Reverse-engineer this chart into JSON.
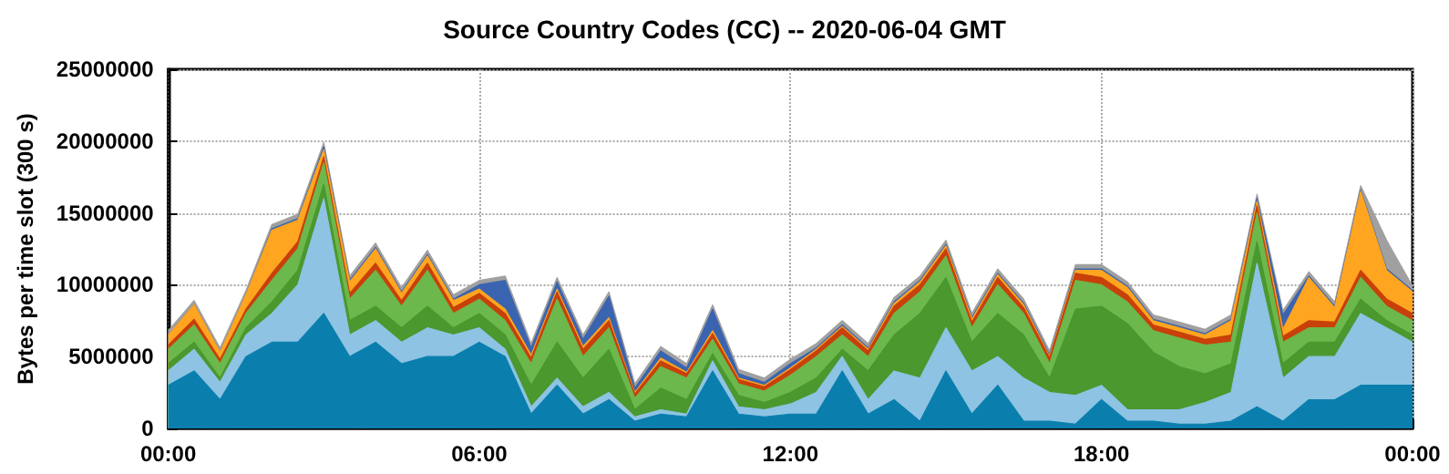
{
  "chart_data": {
    "type": "area",
    "title": "Source Country Codes (CC) -- 2020-06-04 GMT",
    "ylabel": "Bytes per time slot (300 s)",
    "stacked": true,
    "grid": true,
    "marker": "none",
    "x": [
      0,
      0.5,
      1,
      1.5,
      2,
      2.5,
      3,
      3.5,
      4,
      4.5,
      5,
      5.5,
      6,
      6.5,
      7,
      7.5,
      8,
      8.5,
      9,
      9.5,
      10,
      10.5,
      11,
      11.5,
      12,
      12.5,
      13,
      13.5,
      14,
      14.5,
      15,
      15.5,
      16,
      16.5,
      17,
      17.5,
      18,
      18.5,
      19,
      19.5,
      20,
      20.5,
      21,
      21.5,
      22,
      22.5,
      23,
      23.5,
      24
    ],
    "xlim": [
      0,
      24
    ],
    "xticks": [
      {
        "value": 0,
        "label": "00:00"
      },
      {
        "value": 6,
        "label": "06:00"
      },
      {
        "value": 12,
        "label": "12:00"
      },
      {
        "value": 18,
        "label": "18:00"
      },
      {
        "value": 24,
        "label": "00:00"
      }
    ],
    "ylim": [
      0,
      25000000
    ],
    "yticks": [
      0,
      5000000,
      10000000,
      15000000,
      20000000,
      25000000
    ],
    "series": [
      {
        "color": "#0a7fae",
        "values": [
          3000000,
          4000000,
          2000000,
          5000000,
          6000000,
          6000000,
          8000000,
          5000000,
          6000000,
          4500000,
          5000000,
          5000000,
          6000000,
          5000000,
          1000000,
          3000000,
          1000000,
          2000000,
          500000,
          1000000,
          800000,
          4000000,
          1000000,
          800000,
          1000000,
          1000000,
          4000000,
          1000000,
          2000000,
          500000,
          4000000,
          1000000,
          3000000,
          500000,
          500000,
          300000,
          2000000,
          500000,
          500000,
          300000,
          300000,
          500000,
          1500000,
          500000,
          2000000,
          2000000,
          3000000,
          3000000,
          3000000
        ]
      },
      {
        "color": "#8ec3e3",
        "values": [
          1000000,
          1500000,
          1200000,
          1500000,
          2000000,
          4000000,
          8000000,
          1500000,
          1500000,
          1500000,
          2000000,
          1500000,
          1000000,
          500000,
          500000,
          500000,
          500000,
          500000,
          300000,
          300000,
          200000,
          700000,
          500000,
          500000,
          700000,
          1500000,
          1000000,
          1000000,
          2000000,
          3000000,
          3000000,
          3000000,
          2000000,
          3000000,
          2000000,
          2000000,
          1000000,
          800000,
          800000,
          1000000,
          1500000,
          2000000,
          10000000,
          3000000,
          3000000,
          3000000,
          5000000,
          4000000,
          3000000
        ]
      },
      {
        "color": "#4a982e",
        "values": [
          500000,
          500000,
          300000,
          500000,
          800000,
          1000000,
          1000000,
          1000000,
          1000000,
          1000000,
          1500000,
          500000,
          1000000,
          1000000,
          1500000,
          2500000,
          2000000,
          3000000,
          500000,
          1500000,
          1000000,
          500000,
          800000,
          500000,
          800000,
          1000000,
          500000,
          2000000,
          2500000,
          4500000,
          3500000,
          2000000,
          3000000,
          3000000,
          1000000,
          6000000,
          5500000,
          6000000,
          4000000,
          3000000,
          2000000,
          2000000,
          1500000,
          1000000,
          1000000,
          1000000,
          1000000,
          500000,
          500000
        ]
      },
      {
        "color": "#6cb84c",
        "values": [
          1000000,
          1200000,
          1000000,
          1000000,
          1500000,
          1500000,
          1500000,
          1500000,
          2500000,
          1500000,
          2500000,
          1000000,
          1000000,
          1000000,
          1500000,
          3000000,
          1500000,
          1500000,
          800000,
          1500000,
          1500000,
          1000000,
          800000,
          800000,
          1200000,
          1500000,
          1000000,
          1000000,
          1500000,
          1500000,
          1500000,
          1000000,
          2000000,
          1500000,
          1000000,
          2000000,
          1500000,
          1500000,
          1500000,
          2000000,
          2000000,
          1500000,
          2000000,
          1500000,
          1000000,
          1000000,
          1500000,
          1000000,
          1000000
        ]
      },
      {
        "color": "#c8400a",
        "values": [
          300000,
          400000,
          300000,
          300000,
          500000,
          500000,
          400000,
          400000,
          500000,
          400000,
          500000,
          400000,
          400000,
          500000,
          400000,
          500000,
          500000,
          500000,
          300000,
          400000,
          300000,
          400000,
          300000,
          300000,
          400000,
          400000,
          500000,
          400000,
          500000,
          500000,
          500000,
          400000,
          500000,
          400000,
          400000,
          500000,
          500000,
          500000,
          400000,
          400000,
          400000,
          500000,
          500000,
          400000,
          500000,
          400000,
          500000,
          500000,
          500000
        ]
      },
      {
        "color": "#ffa520",
        "values": [
          700000,
          1000000,
          500000,
          1000000,
          3000000,
          1500000,
          500000,
          800000,
          1000000,
          500000,
          500000,
          500000,
          300000,
          300000,
          200000,
          200000,
          200000,
          200000,
          100000,
          200000,
          100000,
          200000,
          100000,
          100000,
          100000,
          100000,
          100000,
          100000,
          200000,
          200000,
          200000,
          200000,
          200000,
          200000,
          100000,
          200000,
          500000,
          500000,
          300000,
          300000,
          300000,
          1000000,
          300000,
          500000,
          3000000,
          1000000,
          5500000,
          2000000,
          1500000
        ]
      },
      {
        "color": "#3a64b0",
        "values": [
          0,
          0,
          0,
          0,
          100000,
          100000,
          200000,
          100000,
          100000,
          100000,
          100000,
          100000,
          300000,
          2000000,
          500000,
          500000,
          500000,
          1500000,
          300000,
          500000,
          300000,
          1500000,
          300000,
          200000,
          300000,
          100000,
          100000,
          100000,
          100000,
          100000,
          100000,
          100000,
          100000,
          100000,
          100000,
          100000,
          100000,
          100000,
          100000,
          100000,
          100000,
          100000,
          200000,
          1000000,
          100000,
          100000,
          100000,
          100000,
          100000
        ]
      },
      {
        "color": "#a0a0a0",
        "values": [
          300000,
          300000,
          300000,
          300000,
          300000,
          300000,
          300000,
          300000,
          300000,
          300000,
          300000,
          300000,
          300000,
          300000,
          300000,
          300000,
          300000,
          300000,
          300000,
          300000,
          300000,
          300000,
          300000,
          300000,
          300000,
          300000,
          300000,
          300000,
          300000,
          300000,
          300000,
          300000,
          300000,
          300000,
          300000,
          300000,
          300000,
          300000,
          300000,
          300000,
          300000,
          300000,
          300000,
          300000,
          300000,
          300000,
          300000,
          2000000,
          300000
        ]
      }
    ]
  }
}
